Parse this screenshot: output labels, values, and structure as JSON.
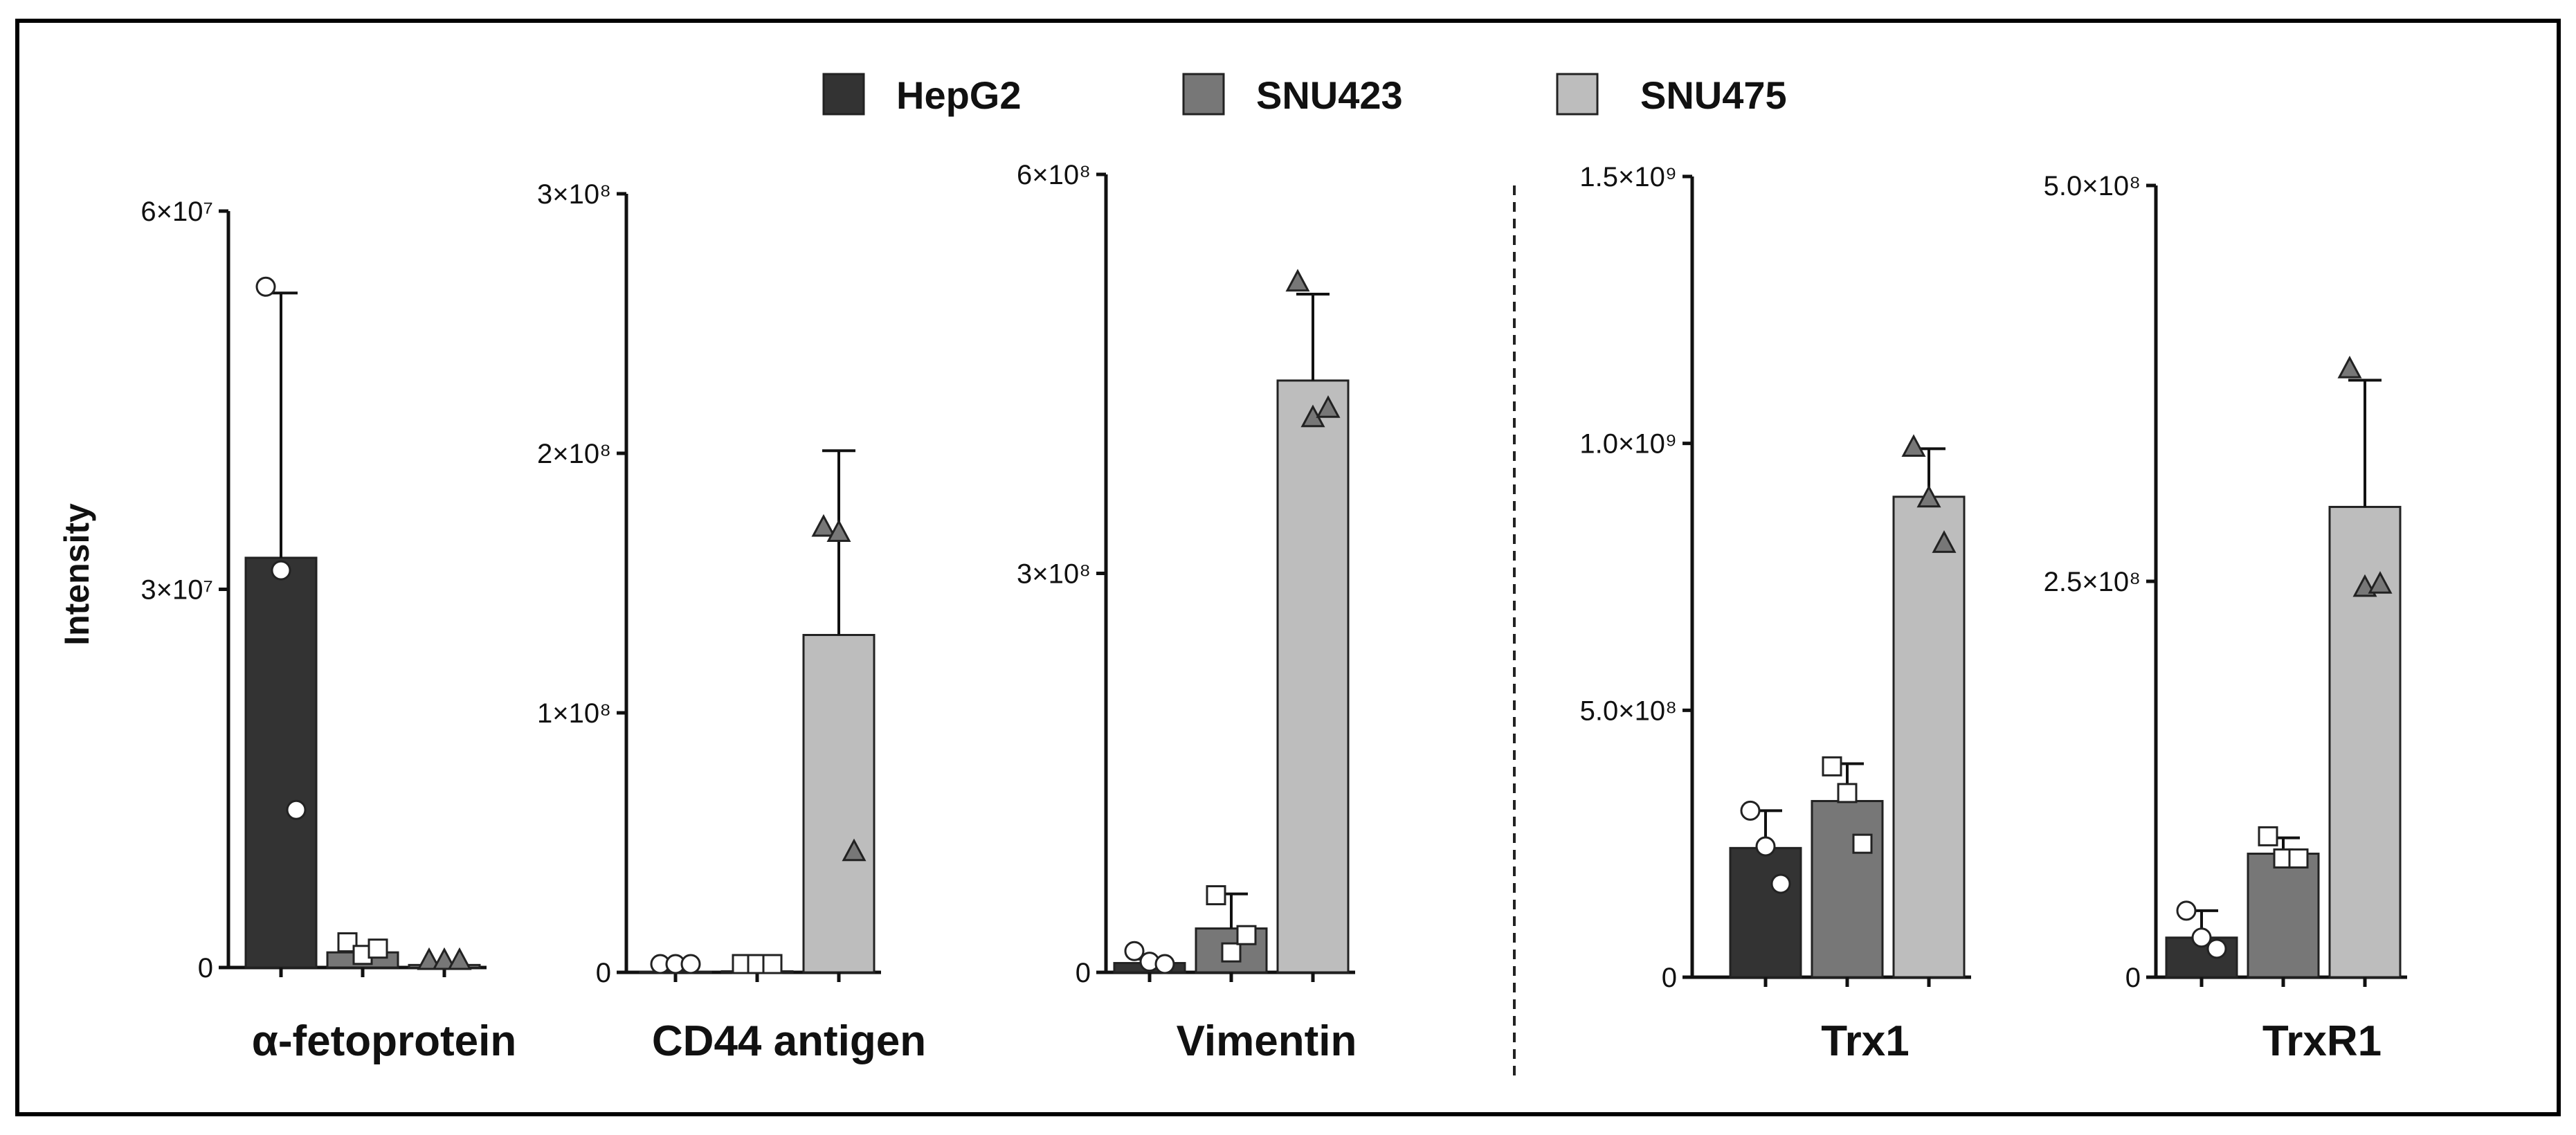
{
  "chart_data": {
    "type": "bar",
    "ylabel": "Intensity",
    "legend": {
      "placement": "top-center",
      "items": [
        {
          "name": "HepG2",
          "color": "#333333"
        },
        {
          "name": "SNU423",
          "color": "#777777"
        },
        {
          "name": "SNU475",
          "color": "#bdbdbd"
        }
      ]
    },
    "panels": [
      {
        "title": "α-fetoprotein",
        "ylim": [
          0,
          60000000
        ],
        "ticks": [
          {
            "v": 0,
            "label": "0"
          },
          {
            "v": 30000000,
            "label": "3×10⁷"
          },
          {
            "v": 60000000,
            "label": "6×10⁷"
          }
        ],
        "series": [
          {
            "name": "HepG2",
            "mean": 32500000,
            "err": 21000000,
            "marker": "circle",
            "points": [
              54000000,
              31500000,
              12500000
            ]
          },
          {
            "name": "SNU423",
            "mean": 1200000,
            "err": 400000,
            "marker": "square",
            "points": [
              2000000,
              1000000,
              1500000
            ]
          },
          {
            "name": "SNU475",
            "mean": 200000,
            "err": 100000,
            "marker": "triangle",
            "points": [
              300000,
              200000,
              250000
            ]
          }
        ]
      },
      {
        "title": "CD44 antigen",
        "ylim": [
          0,
          300000000
        ],
        "ticks": [
          {
            "v": 0,
            "label": "0"
          },
          {
            "v": 100000000,
            "label": "1×10⁸"
          },
          {
            "v": 200000000,
            "label": "2×10⁸"
          },
          {
            "v": 300000000,
            "label": "3×10⁸"
          }
        ],
        "series": [
          {
            "name": "HepG2",
            "mean": 200000,
            "err": 0,
            "marker": "circle",
            "points": [
              300000,
              200000,
              200000
            ]
          },
          {
            "name": "SNU423",
            "mean": 400000,
            "err": 0,
            "marker": "square",
            "points": [
              1000000,
              300000,
              200000
            ]
          },
          {
            "name": "SNU475",
            "mean": 130000000,
            "err": 71000000,
            "marker": "triangle",
            "points": [
              172000000,
              170000000,
              47000000
            ]
          }
        ]
      },
      {
        "title": "Vimentin",
        "ylim": [
          0,
          600000000
        ],
        "ticks": [
          {
            "v": 0,
            "label": "0"
          },
          {
            "v": 300000000,
            "label": "3×10⁸"
          },
          {
            "v": 600000000,
            "label": "6×10⁸"
          }
        ],
        "series": [
          {
            "name": "HepG2",
            "mean": 7000000,
            "err": 3000000,
            "marker": "circle",
            "points": [
              16000000,
              8000000,
              5000000
            ]
          },
          {
            "name": "SNU423",
            "mean": 33000000,
            "err": 26000000,
            "marker": "square",
            "points": [
              58000000,
              15000000,
              28000000
            ]
          },
          {
            "name": "SNU475",
            "mean": 445000000,
            "err": 65000000,
            "marker": "triangle",
            "points": [
              520000000,
              418000000,
              425000000
            ]
          }
        ]
      },
      {
        "title": "Trx1",
        "ylim": [
          0,
          1500000000
        ],
        "ticks": [
          {
            "v": 0,
            "label": "0"
          },
          {
            "v": 500000000,
            "label": "5.0×10⁸"
          },
          {
            "v": 1000000000,
            "label": "1.0×10⁹"
          },
          {
            "v": 1500000000,
            "label": "1.5×10⁹"
          }
        ],
        "series": [
          {
            "name": "HepG2",
            "mean": 242000000,
            "err": 70000000,
            "marker": "circle",
            "points": [
              312000000,
              245000000,
              175000000
            ]
          },
          {
            "name": "SNU423",
            "mean": 330000000,
            "err": 70000000,
            "marker": "square",
            "points": [
              395000000,
              345000000,
              250000000
            ]
          },
          {
            "name": "SNU475",
            "mean": 900000000,
            "err": 90000000,
            "marker": "triangle",
            "points": [
              995000000,
              900000000,
              815000000
            ]
          }
        ]
      },
      {
        "title": "TrxR1",
        "ylim": [
          0,
          500000000
        ],
        "ticks": [
          {
            "v": 0,
            "label": "0"
          },
          {
            "v": 250000000,
            "label": "2.5×10⁸"
          },
          {
            "v": 500000000,
            "label": "5.0×10⁸"
          }
        ],
        "series": [
          {
            "name": "HepG2",
            "mean": 25000000,
            "err": 17000000,
            "marker": "circle",
            "points": [
              42000000,
              25000000,
              18000000
            ]
          },
          {
            "name": "SNU423",
            "mean": 78000000,
            "err": 10000000,
            "marker": "square",
            "points": [
              89000000,
              75000000,
              75000000
            ]
          },
          {
            "name": "SNU475",
            "mean": 297000000,
            "err": 80000000,
            "marker": "triangle",
            "points": [
              385000000,
              247000000,
              249000000
            ]
          }
        ]
      }
    ]
  }
}
